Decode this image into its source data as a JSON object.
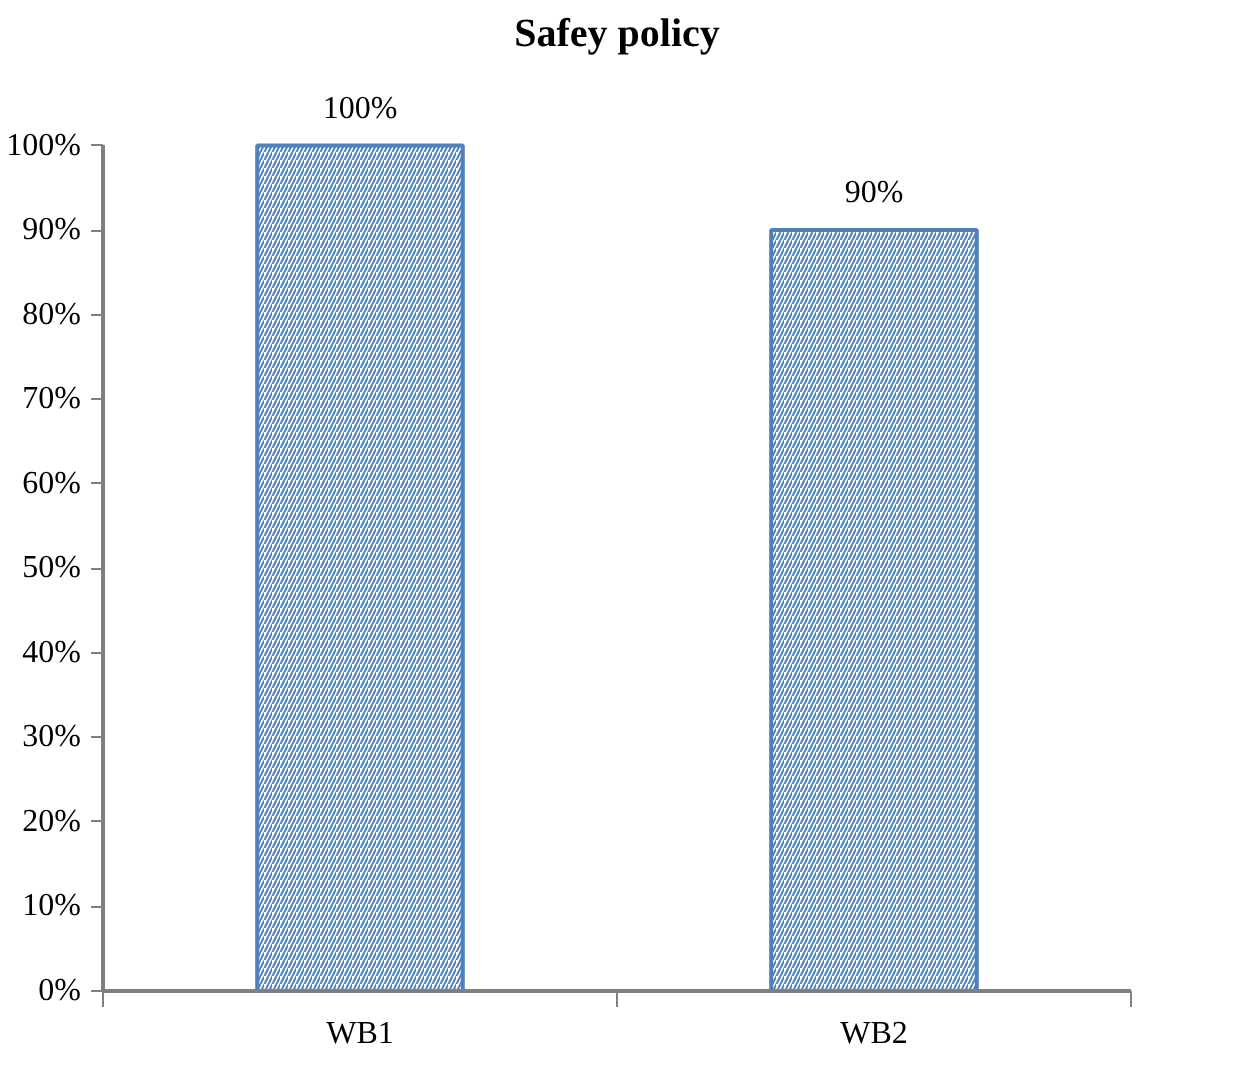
{
  "chart_data": {
    "type": "bar",
    "title": "Safey policy",
    "categories": [
      "WB1",
      "WB2"
    ],
    "values": [
      100,
      90
    ],
    "value_labels": [
      "100%",
      "90%"
    ],
    "color": "#4f81bd",
    "ylim": [
      0,
      100
    ],
    "yticks": [
      {
        "value": 0,
        "label": "0%"
      },
      {
        "value": 10,
        "label": "10%"
      },
      {
        "value": 20,
        "label": "20%"
      },
      {
        "value": 30,
        "label": "30%"
      },
      {
        "value": 40,
        "label": "40%"
      },
      {
        "value": 50,
        "label": "50%"
      },
      {
        "value": 60,
        "label": "60%"
      },
      {
        "value": 70,
        "label": "70%"
      },
      {
        "value": 80,
        "label": "80%"
      },
      {
        "value": 90,
        "label": "90%"
      },
      {
        "value": 100,
        "label": "100%"
      }
    ],
    "grid": false
  }
}
